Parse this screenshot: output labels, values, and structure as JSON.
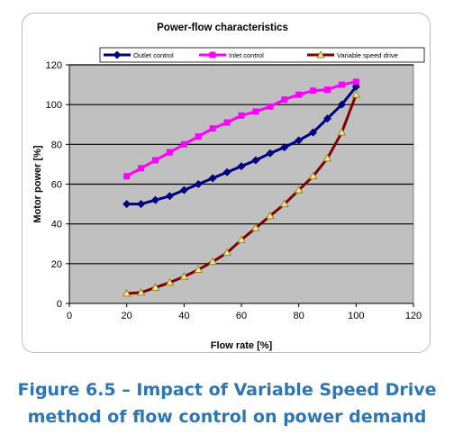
{
  "chart_data": {
    "type": "line",
    "title": "Power-flow characteristics",
    "xlabel": "Flow rate [%]",
    "ylabel": "Motor power [%]",
    "xlim": [
      0,
      120
    ],
    "ylim": [
      0,
      120
    ],
    "x_ticks": [
      0,
      20,
      40,
      60,
      80,
      100,
      120
    ],
    "y_ticks": [
      0,
      20,
      40,
      60,
      80,
      100,
      120
    ],
    "grid": "horizontal",
    "legend_position": "top",
    "plot_background": "#c0c0c0",
    "series": [
      {
        "name": "Outlet control",
        "color": "#000080",
        "marker": "diamond",
        "x": [
          20,
          25,
          30,
          35,
          40,
          45,
          50,
          55,
          60,
          65,
          70,
          75,
          80,
          85,
          90,
          95,
          100
        ],
        "y": [
          50,
          50,
          52,
          54,
          57,
          60,
          63,
          66,
          69,
          72,
          75.5,
          78.5,
          82,
          86,
          93,
          100,
          109
        ]
      },
      {
        "name": "Inlet control",
        "color": "#ff00ff",
        "marker": "square",
        "x": [
          20,
          25,
          30,
          35,
          40,
          45,
          50,
          55,
          60,
          65,
          70,
          75,
          80,
          85,
          90,
          95,
          100
        ],
        "y": [
          64,
          68,
          72,
          76,
          80,
          84,
          88,
          91,
          94.5,
          96.5,
          99,
          102.5,
          105,
          107,
          107.5,
          110,
          111.5
        ]
      },
      {
        "name": "Variable speed drive",
        "color": "#800000",
        "marker": "triangle",
        "x": [
          20,
          25,
          30,
          35,
          40,
          45,
          50,
          55,
          60,
          65,
          70,
          75,
          80,
          85,
          90,
          95,
          100
        ],
        "y": [
          5,
          5.5,
          8,
          10.5,
          13.5,
          17,
          21,
          25.5,
          32,
          38,
          44,
          50,
          57,
          64,
          73,
          86,
          105
        ]
      }
    ]
  },
  "caption": {
    "line1": "Figure 6.5 – Impact of Variable Speed Drive",
    "line2": "method of flow control on power demand"
  }
}
